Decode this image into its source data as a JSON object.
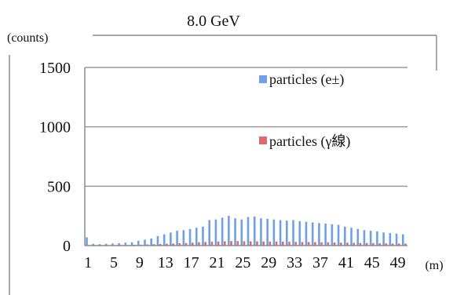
{
  "chart_data": {
    "type": "bar",
    "title": "8.0 GeV",
    "ylabel": "(counts)",
    "xlabel": "(m)",
    "ylim": [
      0,
      1500
    ],
    "yticks": [
      0,
      500,
      1000,
      1500
    ],
    "categories": [
      1,
      2,
      3,
      4,
      5,
      6,
      7,
      8,
      9,
      10,
      11,
      12,
      13,
      14,
      15,
      16,
      17,
      18,
      19,
      20,
      21,
      22,
      23,
      24,
      25,
      26,
      27,
      28,
      29,
      30,
      31,
      32,
      33,
      34,
      35,
      36,
      37,
      38,
      39,
      40,
      41,
      42,
      43,
      44,
      45,
      46,
      47,
      48,
      49,
      50
    ],
    "tick_labels": [
      "1",
      "5",
      "9",
      "13",
      "17",
      "21",
      "25",
      "29",
      "33",
      "37",
      "41",
      "45",
      "49"
    ],
    "grid": true,
    "legend_position": "top-right",
    "series": [
      {
        "name": "particles (e±)",
        "color": "#6fa0e6",
        "values": [
          70,
          15,
          12,
          15,
          18,
          20,
          25,
          28,
          40,
          50,
          60,
          80,
          95,
          110,
          125,
          130,
          140,
          150,
          160,
          215,
          220,
          235,
          250,
          230,
          220,
          240,
          245,
          230,
          225,
          220,
          215,
          210,
          215,
          205,
          200,
          195,
          190,
          185,
          180,
          175,
          160,
          150,
          140,
          130,
          125,
          120,
          110,
          105,
          100,
          95
        ]
      },
      {
        "name": "particles (γ線)",
        "color": "#e06a6a",
        "values": [
          2,
          2,
          2,
          3,
          3,
          4,
          5,
          6,
          8,
          10,
          12,
          14,
          16,
          18,
          20,
          22,
          25,
          28,
          30,
          32,
          35,
          36,
          38,
          38,
          37,
          36,
          36,
          35,
          34,
          34,
          33,
          32,
          31,
          30,
          30,
          29,
          28,
          27,
          26,
          25,
          24,
          23,
          22,
          22,
          21,
          20,
          19,
          18,
          18,
          17
        ]
      }
    ]
  }
}
